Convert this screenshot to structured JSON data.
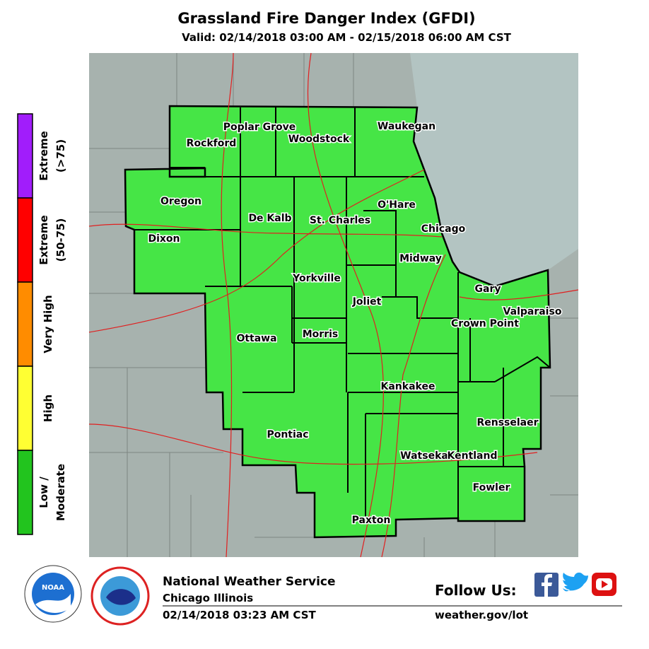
{
  "header": {
    "title": "Grassland Fire Danger Index (GFDI)",
    "subtitle": "Valid: 02/14/2018 03:00 AM - 02/15/2018 06:00 AM CST"
  },
  "legend": [
    {
      "label": [
        "Extreme",
        "(>75)"
      ],
      "color": "#a11dfb"
    },
    {
      "label": [
        "Extreme",
        "(50-75)"
      ],
      "color": "#ff0000"
    },
    {
      "label": [
        "Very High"
      ],
      "color": "#ff8c00"
    },
    {
      "label": [
        "High"
      ],
      "color": "#ffff33"
    },
    {
      "label": [
        "Low /",
        "Moderate"
      ],
      "color": "#22c41e"
    }
  ],
  "danger_color": "#46e546",
  "places": [
    "Poplar Grove",
    "Woodstock",
    "Waukegan",
    "Rockford",
    "Oregon",
    "De Kalb",
    "St. Charles",
    "O'Hare",
    "Chicago",
    "Dixon",
    "Midway",
    "Yorkville",
    "Gary",
    "Joliet",
    "Valparaiso",
    "Crown Point",
    "Ottawa",
    "Morris",
    "Kankakee",
    "Rensselaer",
    "Pontiac",
    "Watseka",
    "Kentland",
    "Fowler",
    "Paxton"
  ],
  "footer": {
    "agency": "National Weather Service",
    "office": "Chicago Illinois",
    "issued": "02/14/2018 03:23 AM CST",
    "follow": "Follow Us:",
    "url": "weather.gov/lot",
    "logo": "NOAA"
  }
}
